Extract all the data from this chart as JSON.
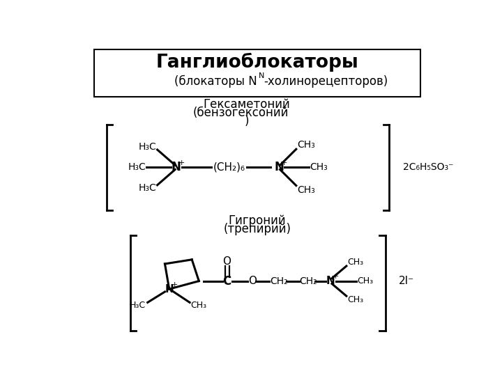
{
  "title_line1": "Ганглиоблокаторы",
  "subtitle_pre": "(блокаторы N",
  "subtitle_sub": "N",
  "subtitle_post": "-холинорецепторов)",
  "drug1_l1": "Гексаметоний",
  "drug1_l2": "(бензогексоний",
  "drug1_l3": ")",
  "drug2_l1": "Гигроний",
  "drug2_l2": "(трепирий)",
  "counter1": "2C₆H₅SO₃⁻",
  "counter2": "2I⁻",
  "bg": "#ffffff",
  "fg": "#000000"
}
